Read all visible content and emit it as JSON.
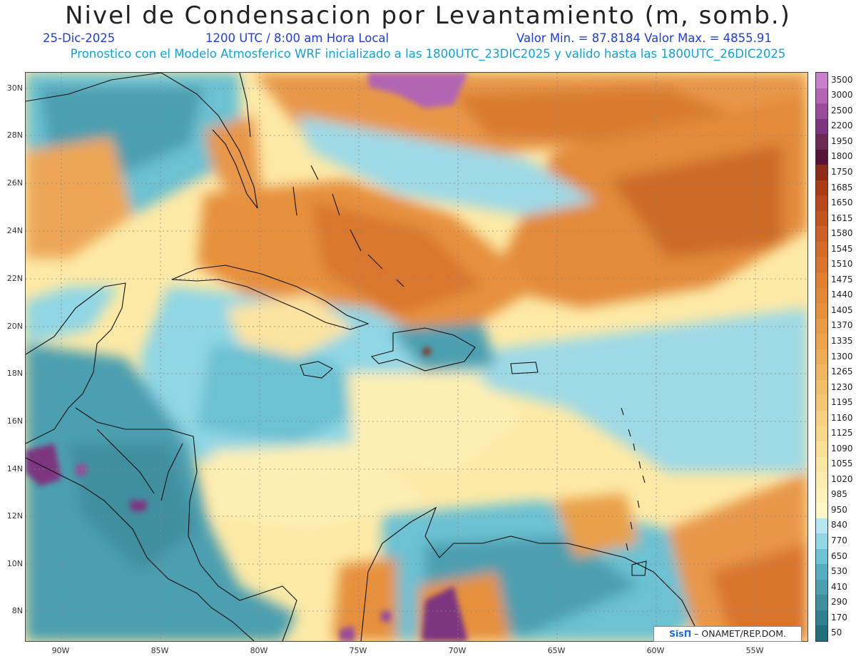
{
  "header": {
    "title": "Nivel de Condensacion por Levantamiento (m, somb.)",
    "date": "25-Dic-2025",
    "time": "1200 UTC / 8:00 am Hora Local",
    "minmax": "Valor Min. = 87.8184  Valor Max. = 4855.91",
    "model_line": "Pronostico con el Modelo Atmosferico WRF inicializado a las 1800UTC_23DIC2025 y valido hasta las  1800UTC_26DIC2025"
  },
  "axes": {
    "lat_labels": [
      "30N",
      "28N",
      "26N",
      "24N",
      "22N",
      "20N",
      "18N",
      "16N",
      "14N",
      "12N",
      "10N",
      "8N"
    ],
    "lon_labels": [
      "90W",
      "85W",
      "80W",
      "75W",
      "70W",
      "65W",
      "60W",
      "55W"
    ]
  },
  "colorbar": {
    "labels": [
      "3500",
      "3000",
      "2500",
      "2200",
      "1950",
      "1800",
      "1750",
      "1685",
      "1650",
      "1615",
      "1580",
      "1545",
      "1510",
      "1475",
      "1440",
      "1405",
      "1370",
      "1335",
      "1300",
      "1265",
      "1230",
      "1195",
      "1160",
      "1125",
      "1090",
      "1055",
      "1020",
      "985",
      "950",
      "840",
      "770",
      "650",
      "530",
      "410",
      "290",
      "170",
      "50"
    ],
    "colors": [
      "#c97fc9",
      "#b265b2",
      "#9a4b9a",
      "#7d3580",
      "#6a2a55",
      "#561436",
      "#8b2c16",
      "#a93c14",
      "#b8471a",
      "#c25420",
      "#cc6025",
      "#d46b29",
      "#da752d",
      "#e07e31",
      "#e38736",
      "#e6903c",
      "#e89a44",
      "#eba34d",
      "#edac56",
      "#f0b55f",
      "#f2be69",
      "#f4c774",
      "#f6cf7f",
      "#f8d88b",
      "#f9e097",
      "#fbe7a2",
      "#fcedaf",
      "#fdf2bb",
      "#fef6c6",
      "#b6e7ef",
      "#90d6e4",
      "#6cc1d2",
      "#55aebf",
      "#4c9fb0",
      "#3f8f9f",
      "#2f7f8f",
      "#236e7d"
    ],
    "min_value": 87.8184,
    "max_value": 4855.91
  },
  "credit": {
    "brand": "SisΠ",
    "text": "– ONAMET/REP.DOM."
  }
}
